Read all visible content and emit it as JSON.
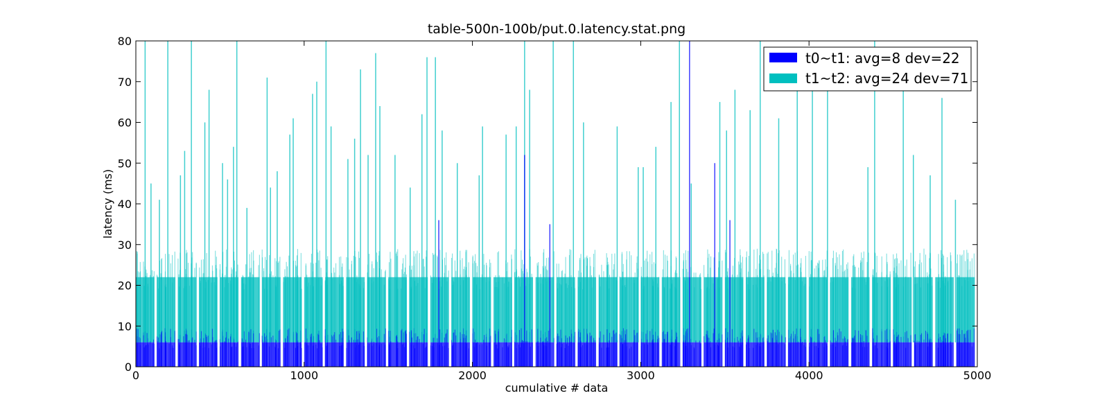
{
  "chart_data": {
    "type": "bar",
    "stacked": true,
    "title": "table-500n-100b/put.0.latency.stat.png",
    "xlabel": "cumulative # data",
    "ylabel": "latency (ms)",
    "xlim": [
      0,
      5000
    ],
    "ylim": [
      0,
      80
    ],
    "xticks": [
      0,
      1000,
      2000,
      3000,
      4000,
      5000
    ],
    "yticks": [
      0,
      10,
      20,
      30,
      40,
      50,
      60,
      70,
      80
    ],
    "grid": false,
    "legend_position": "top-right",
    "segments": 40,
    "points_per_segment": 125,
    "series": [
      {
        "name": "t0~t1: avg=8 dev=22",
        "color": "#0000ff",
        "typical": 6,
        "spikes": [
          {
            "x": 1800,
            "y": 36
          },
          {
            "x": 2310,
            "y": 52
          },
          {
            "x": 2460,
            "y": 35
          },
          {
            "x": 3290,
            "y": 80
          },
          {
            "x": 3440,
            "y": 50
          },
          {
            "x": 3530,
            "y": 36
          }
        ]
      },
      {
        "name": "t1~t2: avg=24 dev=71",
        "color": "#00bfbf",
        "typical": 22,
        "spikes": [
          {
            "x": 55,
            "y": 80
          },
          {
            "x": 90,
            "y": 45
          },
          {
            "x": 140,
            "y": 41
          },
          {
            "x": 190,
            "y": 80
          },
          {
            "x": 265,
            "y": 47
          },
          {
            "x": 290,
            "y": 53
          },
          {
            "x": 330,
            "y": 80
          },
          {
            "x": 410,
            "y": 60
          },
          {
            "x": 435,
            "y": 68
          },
          {
            "x": 515,
            "y": 50
          },
          {
            "x": 545,
            "y": 46
          },
          {
            "x": 580,
            "y": 54
          },
          {
            "x": 600,
            "y": 80
          },
          {
            "x": 660,
            "y": 39
          },
          {
            "x": 780,
            "y": 71
          },
          {
            "x": 800,
            "y": 44
          },
          {
            "x": 840,
            "y": 48
          },
          {
            "x": 915,
            "y": 57
          },
          {
            "x": 935,
            "y": 61
          },
          {
            "x": 1050,
            "y": 67
          },
          {
            "x": 1075,
            "y": 70
          },
          {
            "x": 1130,
            "y": 80
          },
          {
            "x": 1160,
            "y": 59
          },
          {
            "x": 1260,
            "y": 51
          },
          {
            "x": 1300,
            "y": 56
          },
          {
            "x": 1335,
            "y": 73
          },
          {
            "x": 1380,
            "y": 52
          },
          {
            "x": 1425,
            "y": 77
          },
          {
            "x": 1450,
            "y": 64
          },
          {
            "x": 1540,
            "y": 52
          },
          {
            "x": 1630,
            "y": 44
          },
          {
            "x": 1700,
            "y": 62
          },
          {
            "x": 1730,
            "y": 76
          },
          {
            "x": 1780,
            "y": 76
          },
          {
            "x": 1820,
            "y": 58
          },
          {
            "x": 1910,
            "y": 50
          },
          {
            "x": 2040,
            "y": 47
          },
          {
            "x": 2060,
            "y": 59
          },
          {
            "x": 2200,
            "y": 57
          },
          {
            "x": 2260,
            "y": 59
          },
          {
            "x": 2310,
            "y": 80
          },
          {
            "x": 2340,
            "y": 68
          },
          {
            "x": 2480,
            "y": 80
          },
          {
            "x": 2600,
            "y": 80
          },
          {
            "x": 2660,
            "y": 60
          },
          {
            "x": 2860,
            "y": 59
          },
          {
            "x": 2985,
            "y": 49
          },
          {
            "x": 3015,
            "y": 49
          },
          {
            "x": 3090,
            "y": 54
          },
          {
            "x": 3180,
            "y": 65
          },
          {
            "x": 3230,
            "y": 80
          },
          {
            "x": 3300,
            "y": 45
          },
          {
            "x": 3470,
            "y": 65
          },
          {
            "x": 3510,
            "y": 58
          },
          {
            "x": 3560,
            "y": 68
          },
          {
            "x": 3650,
            "y": 63
          },
          {
            "x": 3710,
            "y": 80
          },
          {
            "x": 3820,
            "y": 61
          },
          {
            "x": 3930,
            "y": 75
          },
          {
            "x": 4020,
            "y": 73
          },
          {
            "x": 4110,
            "y": 68
          },
          {
            "x": 4350,
            "y": 49
          },
          {
            "x": 4390,
            "y": 80
          },
          {
            "x": 4560,
            "y": 75
          },
          {
            "x": 4620,
            "y": 52
          },
          {
            "x": 4720,
            "y": 47
          },
          {
            "x": 4790,
            "y": 66
          },
          {
            "x": 4870,
            "y": 41
          }
        ]
      }
    ]
  }
}
